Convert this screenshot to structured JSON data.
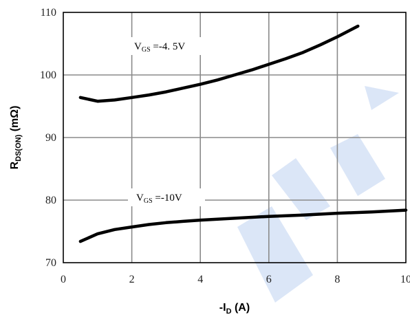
{
  "chart_data": {
    "type": "line",
    "xlabel": {
      "prefix": "-I",
      "sub": "D",
      "suffix": " (A)"
    },
    "ylabel": {
      "main": "R",
      "sub": "DS(ON)",
      "suffix": " (mΩ)"
    },
    "xlim": [
      0,
      10
    ],
    "ylim": [
      70,
      110
    ],
    "x_ticks": [
      0,
      2,
      4,
      6,
      8,
      10
    ],
    "y_ticks": [
      70,
      80,
      90,
      100,
      110
    ],
    "x_tick_labels": [
      "0",
      "2",
      "4",
      "6",
      "8",
      "10"
    ],
    "y_tick_labels": [
      "70",
      "80",
      "90",
      "100",
      "110"
    ],
    "grid": true,
    "series": [
      {
        "label": {
          "prefix": "V",
          "sub": "GS",
          "suffix": " =-4. 5V"
        },
        "x": [
          0.5,
          0.75,
          1.0,
          1.5,
          2.0,
          2.5,
          3.0,
          3.5,
          4.0,
          4.5,
          5.0,
          5.5,
          6.0,
          6.5,
          7.0,
          7.5,
          8.0,
          8.6
        ],
        "y": [
          96.4,
          96.1,
          95.8,
          96.0,
          96.4,
          96.8,
          97.3,
          97.9,
          98.5,
          99.2,
          100.0,
          100.8,
          101.7,
          102.6,
          103.6,
          104.8,
          106.1,
          107.8
        ]
      },
      {
        "label": {
          "prefix": "V",
          "sub": "GS",
          "suffix": " =-10V"
        },
        "x": [
          0.5,
          1.0,
          1.5,
          2.0,
          2.5,
          3.0,
          3.5,
          4.0,
          5.0,
          6.0,
          7.0,
          8.0,
          9.0,
          10.0
        ],
        "y": [
          73.4,
          74.6,
          75.3,
          75.7,
          76.1,
          76.4,
          76.6,
          76.8,
          77.1,
          77.4,
          77.6,
          77.9,
          78.1,
          78.4
        ]
      }
    ]
  }
}
